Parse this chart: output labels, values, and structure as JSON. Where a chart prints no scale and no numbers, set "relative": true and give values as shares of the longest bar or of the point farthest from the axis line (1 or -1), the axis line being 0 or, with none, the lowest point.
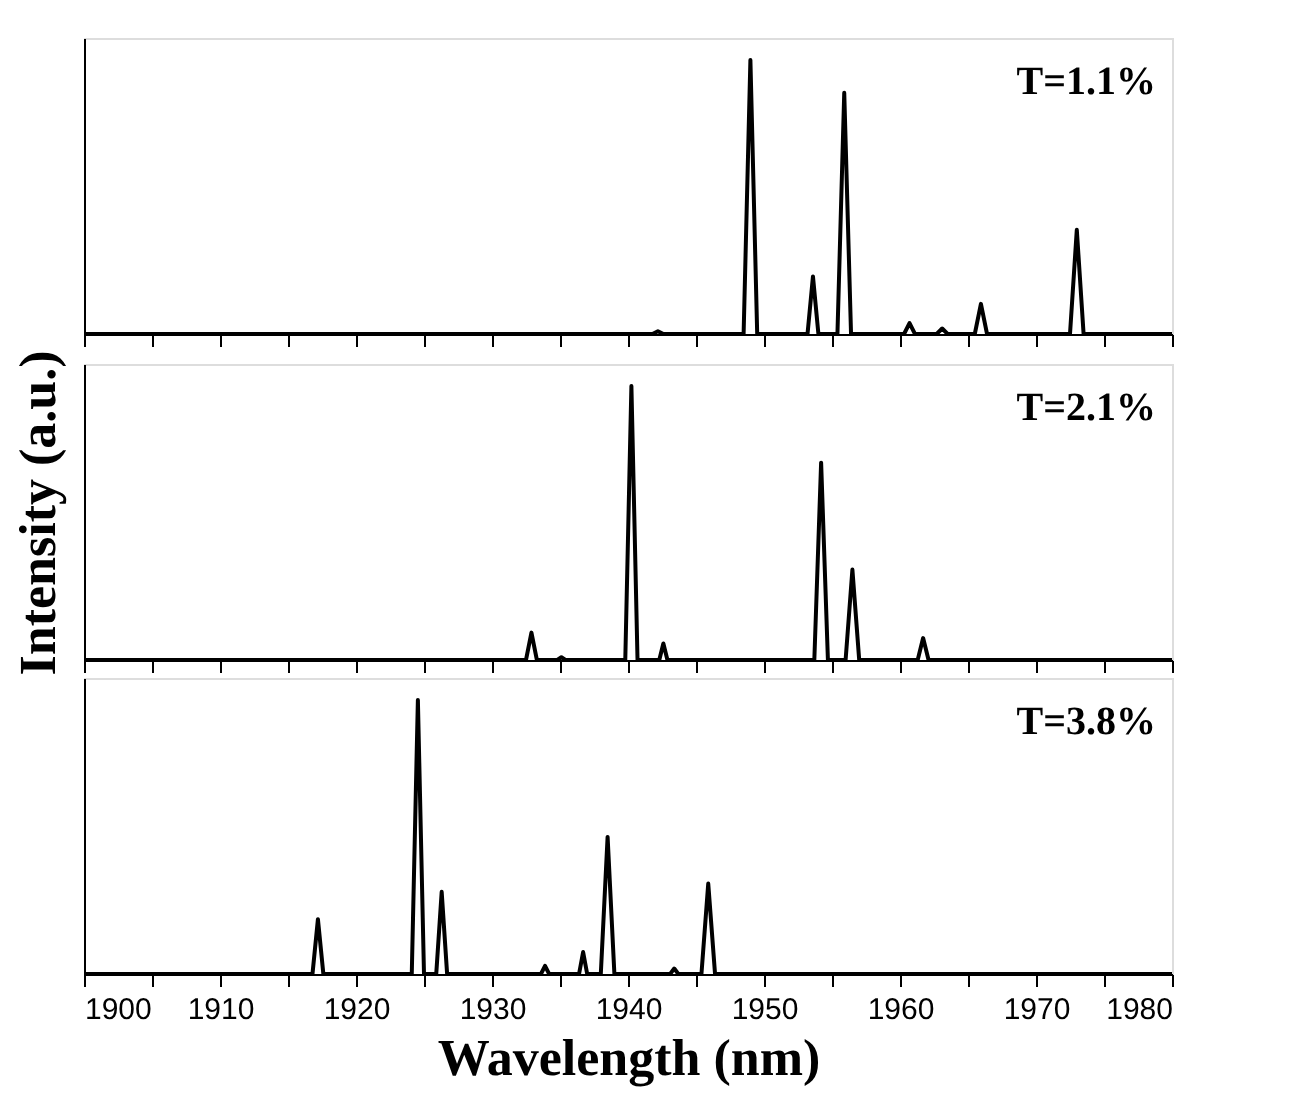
{
  "chart_data": [
    {
      "type": "line",
      "relative": true,
      "xlim": [
        1900,
        1980
      ],
      "xticks": [
        {
          "value": 1900,
          "label": null
        },
        {
          "value": 1905,
          "label": null
        },
        {
          "value": 1910,
          "label": null
        },
        {
          "value": 1915,
          "label": null
        },
        {
          "value": 1920,
          "label": null
        },
        {
          "value": 1925,
          "label": null
        },
        {
          "value": 1930,
          "label": null
        },
        {
          "value": 1935,
          "label": null
        },
        {
          "value": 1940,
          "label": null
        },
        {
          "value": 1945,
          "label": null
        },
        {
          "value": 1950,
          "label": null
        },
        {
          "value": 1955,
          "label": null
        },
        {
          "value": 1960,
          "label": null
        },
        {
          "value": 1965,
          "label": null
        },
        {
          "value": 1970,
          "label": null
        },
        {
          "value": 1975,
          "label": null
        },
        {
          "value": 1980,
          "label": null
        }
      ],
      "tick_labels": false,
      "grid": false,
      "legend": "top right",
      "series": [
        {
          "name": "T=1.1%",
          "color": "#000000",
          "x": [
            1900,
            1941.8,
            1942.2,
            1942.6,
            1948.5,
            1949.0,
            1949.5,
            1953.2,
            1953.6,
            1954.0,
            1955.4,
            1955.9,
            1956.4,
            1960.3,
            1960.7,
            1961.1,
            1962.7,
            1963.1,
            1963.5,
            1965.5,
            1965.95,
            1966.4,
            1972.5,
            1973.0,
            1973.5,
            1980
          ],
          "values": [
            0,
            0,
            0.01,
            0,
            0,
            1.0,
            0,
            0,
            0.21,
            0,
            0,
            0.88,
            0,
            0,
            0.04,
            0,
            0,
            0.02,
            0,
            0,
            0.11,
            0,
            0,
            0.38,
            0,
            0
          ]
        }
      ]
    },
    {
      "type": "line",
      "relative": true,
      "ylabel": "Intensity (a.u.)",
      "xlim": [
        1900,
        1980
      ],
      "xticks": [
        {
          "value": 1900,
          "label": null
        },
        {
          "value": 1905,
          "label": null
        },
        {
          "value": 1910,
          "label": null
        },
        {
          "value": 1915,
          "label": null
        },
        {
          "value": 1920,
          "label": null
        },
        {
          "value": 1925,
          "label": null
        },
        {
          "value": 1930,
          "label": null
        },
        {
          "value": 1935,
          "label": null
        },
        {
          "value": 1940,
          "label": null
        },
        {
          "value": 1945,
          "label": null
        },
        {
          "value": 1950,
          "label": null
        },
        {
          "value": 1955,
          "label": null
        },
        {
          "value": 1960,
          "label": null
        },
        {
          "value": 1965,
          "label": null
        },
        {
          "value": 1970,
          "label": null
        },
        {
          "value": 1975,
          "label": null
        },
        {
          "value": 1980,
          "label": null
        }
      ],
      "tick_labels": false,
      "grid": false,
      "legend": "top right",
      "series": [
        {
          "name": "T=2.1%",
          "color": "#000000",
          "x": [
            1900,
            1932.5,
            1932.9,
            1933.3,
            1934.8,
            1935.1,
            1935.4,
            1939.8,
            1940.25,
            1940.7,
            1942.3,
            1942.6,
            1942.9,
            1953.7,
            1954.2,
            1954.7,
            1956.0,
            1956.5,
            1957.0,
            1961.3,
            1961.7,
            1962.1,
            1980
          ],
          "values": [
            0,
            0,
            0.1,
            0,
            0,
            0.01,
            0,
            0,
            1.0,
            0,
            0,
            0.06,
            0,
            0,
            0.72,
            0,
            0,
            0.33,
            0,
            0,
            0.08,
            0,
            0
          ]
        }
      ]
    },
    {
      "type": "line",
      "relative": true,
      "xlabel": "Wavelength (nm)",
      "xlim": [
        1900,
        1980
      ],
      "xticks": [
        1900,
        {
          "value": 1905,
          "label": null
        },
        1910,
        {
          "value": 1915,
          "label": null
        },
        1920,
        {
          "value": 1925,
          "label": null
        },
        1930,
        {
          "value": 1935,
          "label": null
        },
        1940,
        {
          "value": 1945,
          "label": null
        },
        1950,
        {
          "value": 1955,
          "label": null
        },
        1960,
        {
          "value": 1965,
          "label": null
        },
        1970,
        {
          "value": 1975,
          "label": null
        },
        1980
      ],
      "tick_labels": "x",
      "grid": false,
      "legend": "top right",
      "series": [
        {
          "name": "T=3.8%",
          "color": "#000000",
          "x": [
            1900,
            1916.8,
            1917.2,
            1917.6,
            1924.1,
            1924.55,
            1925.0,
            1925.9,
            1926.3,
            1926.7,
            1933.6,
            1933.9,
            1934.2,
            1936.4,
            1936.7,
            1937.0,
            1938.0,
            1938.5,
            1939.0,
            1943.1,
            1943.4,
            1943.7,
            1945.4,
            1945.9,
            1946.4,
            1980
          ],
          "values": [
            0,
            0,
            0.2,
            0,
            0,
            1.0,
            0,
            0,
            0.3,
            0,
            0,
            0.03,
            0,
            0,
            0.08,
            0,
            0,
            0.5,
            0,
            0,
            0.02,
            0,
            0,
            0.33,
            0,
            0
          ]
        }
      ]
    }
  ]
}
